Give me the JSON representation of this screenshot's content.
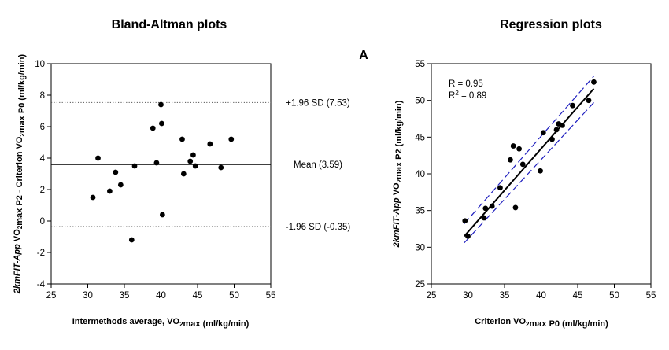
{
  "headings": {
    "left": "Bland-Altman plots",
    "right": "Regression plots",
    "panel_letter": "A"
  },
  "chart_data": [
    {
      "type": "scatter",
      "title": "Bland-Altman plots",
      "xlabel": "Intermethods average, VO2max (ml/kg/min)",
      "ylabel": "2kmFIT-App VO2max P2 - Criterion VO2max P0 (ml/kg/min)",
      "xlim": [
        25,
        55
      ],
      "ylim": [
        -4,
        10
      ],
      "xticks": [
        25,
        30,
        35,
        40,
        45,
        50,
        55
      ],
      "yticks": [
        -4,
        -2,
        0,
        2,
        4,
        6,
        8,
        10
      ],
      "grid": false,
      "points": [
        {
          "x": 30.7,
          "y": 1.5
        },
        {
          "x": 31.4,
          "y": 4.0
        },
        {
          "x": 33.0,
          "y": 1.9
        },
        {
          "x": 33.8,
          "y": 3.1
        },
        {
          "x": 34.5,
          "y": 2.3
        },
        {
          "x": 36.0,
          "y": -1.2
        },
        {
          "x": 36.4,
          "y": 3.5
        },
        {
          "x": 38.9,
          "y": 5.9
        },
        {
          "x": 39.4,
          "y": 3.7
        },
        {
          "x": 40.0,
          "y": 7.4
        },
        {
          "x": 40.1,
          "y": 6.2
        },
        {
          "x": 40.2,
          "y": 0.4
        },
        {
          "x": 42.9,
          "y": 5.2
        },
        {
          "x": 43.1,
          "y": 3.0
        },
        {
          "x": 44.0,
          "y": 3.8
        },
        {
          "x": 44.4,
          "y": 4.2
        },
        {
          "x": 44.7,
          "y": 3.5
        },
        {
          "x": 46.7,
          "y": 4.9
        },
        {
          "x": 48.2,
          "y": 3.4
        },
        {
          "x": 49.6,
          "y": 5.2
        }
      ],
      "reference_lines": [
        {
          "y": 7.53,
          "style": "dotted",
          "label": "+1.96 SD (7.53)"
        },
        {
          "y": 3.59,
          "style": "solid",
          "label": "Mean (3.59)"
        },
        {
          "y": -0.35,
          "style": "dotted",
          "label": "-1.96 SD (-0.35)"
        }
      ]
    },
    {
      "type": "scatter",
      "title": "Regression plots",
      "xlabel": "Criterion VO2max P0 (ml/kg/min)",
      "ylabel": "2kmFIT-App VO2max P2 (ml/kg/min)",
      "xlim": [
        25,
        55
      ],
      "ylim": [
        25,
        55
      ],
      "xticks": [
        25,
        30,
        35,
        40,
        45,
        50,
        55
      ],
      "yticks": [
        25,
        30,
        35,
        40,
        45,
        50,
        55
      ],
      "grid": false,
      "annotations": [
        "R = 0.95",
        "R2 = 0.89"
      ],
      "fit_line": {
        "x": [
          29.5,
          47.2
        ],
        "y": [
          31.5,
          51.6
        ]
      },
      "confidence_band": {
        "color": "#1f1fbf",
        "upper": {
          "x": [
            29.5,
            47.2
          ],
          "y": [
            33.2,
            53.3
          ]
        },
        "lower": {
          "x": [
            29.5,
            47.2
          ],
          "y": [
            30.6,
            49.7
          ]
        }
      },
      "points": [
        {
          "x": 29.6,
          "y": 33.6
        },
        {
          "x": 30.0,
          "y": 31.5
        },
        {
          "x": 32.2,
          "y": 34.0
        },
        {
          "x": 32.4,
          "y": 35.3
        },
        {
          "x": 33.3,
          "y": 35.6
        },
        {
          "x": 34.4,
          "y": 38.1
        },
        {
          "x": 35.8,
          "y": 41.9
        },
        {
          "x": 36.2,
          "y": 43.8
        },
        {
          "x": 36.5,
          "y": 35.4
        },
        {
          "x": 37.0,
          "y": 43.4
        },
        {
          "x": 37.5,
          "y": 41.3
        },
        {
          "x": 39.9,
          "y": 40.4
        },
        {
          "x": 40.3,
          "y": 45.6
        },
        {
          "x": 41.5,
          "y": 44.7
        },
        {
          "x": 42.1,
          "y": 46.0
        },
        {
          "x": 42.4,
          "y": 46.8
        },
        {
          "x": 42.9,
          "y": 46.6
        },
        {
          "x": 44.3,
          "y": 49.3
        },
        {
          "x": 46.5,
          "y": 50.0
        },
        {
          "x": 47.2,
          "y": 52.5
        }
      ]
    }
  ]
}
